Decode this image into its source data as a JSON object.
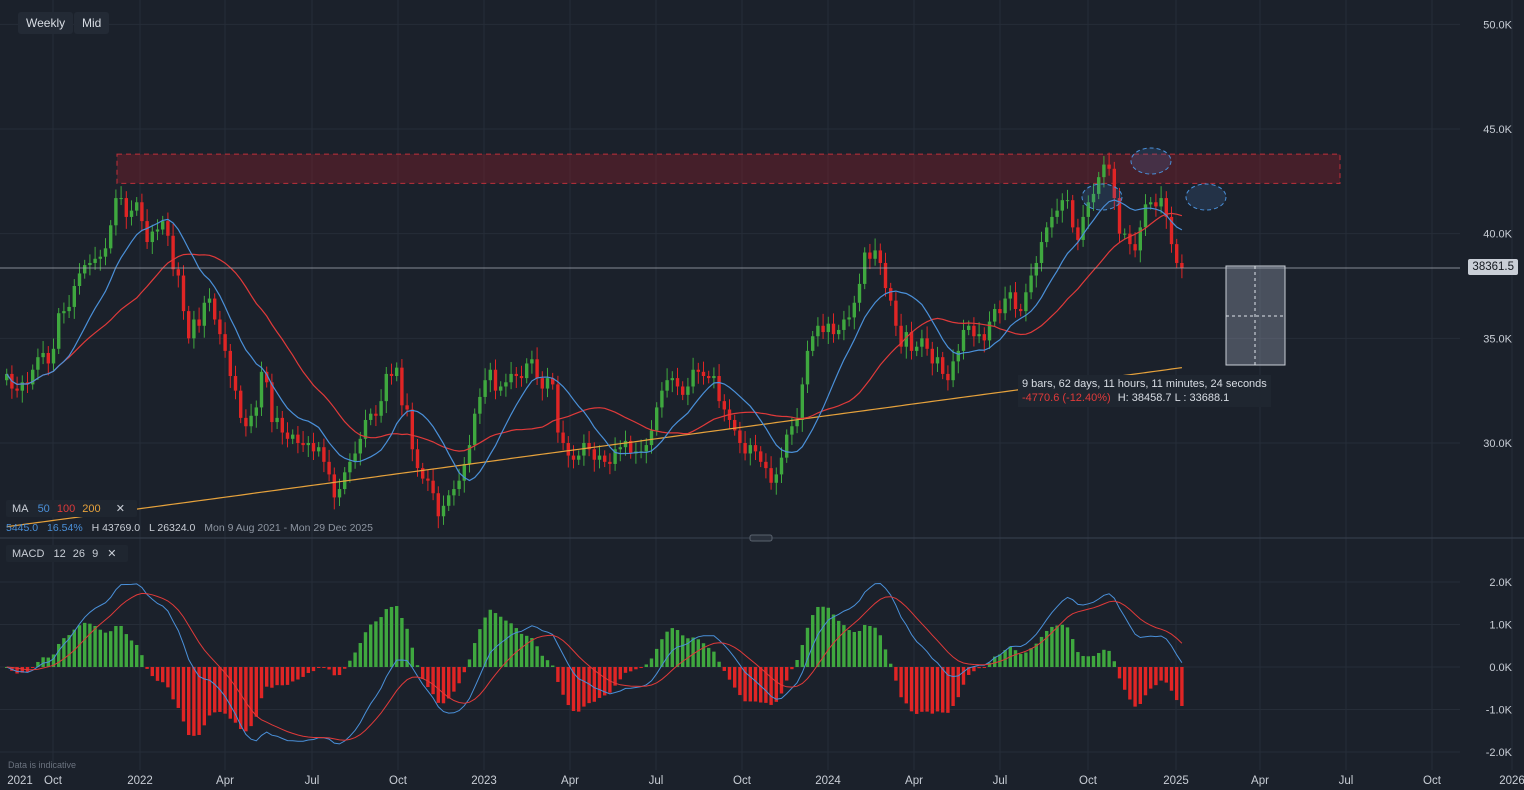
{
  "toolbar": {
    "interval": "Weekly",
    "price_type": "Mid"
  },
  "indicators": {
    "ma": {
      "label": "MA",
      "p1": "50",
      "p2": "100",
      "p3": "200",
      "colors": {
        "ma50": "#4a90d9",
        "ma100": "#e03a3a",
        "ma200": "#e6a23c"
      }
    },
    "stats": {
      "change": "5445.0",
      "pct": "16.54%",
      "high": "H 43769.0",
      "low": "L 26324.0",
      "range": "Mon 9 Aug 2021 - Mon 29 Dec 2025"
    },
    "macd": {
      "label": "MACD",
      "fast": "12",
      "slow": "26",
      "signal": "9"
    }
  },
  "last_price": "38361.5",
  "measurement": {
    "line1": "9 bars, 62 days, 11 hours, 11 minutes, 24 seconds",
    "change": "-4770.6 (-12.40%)",
    "hl": "H: 38458.7 L : 33688.1"
  },
  "disclaimer": "Data is indicative",
  "chart_data": {
    "type": "candlestick",
    "y_axis": {
      "ticks": [
        "50.0K",
        "45.0K",
        "40.0K",
        "35.0K",
        "30.0K"
      ],
      "range": [
        24000,
        51000
      ]
    },
    "x_axis": {
      "ticks": [
        "2021",
        "Oct",
        "2022",
        "Apr",
        "Jul",
        "Oct",
        "2023",
        "Apr",
        "Jul",
        "Oct",
        "2024",
        "Apr",
        "Jul",
        "Oct",
        "2025",
        "Apr",
        "Jul",
        "Oct",
        "2026"
      ]
    },
    "resistance_zone": [
      42400,
      43800
    ],
    "colors": {
      "up": "#3fa83f",
      "down": "#e02525"
    },
    "close": [
      33300,
      32600,
      32500,
      32900,
      32800,
      33500,
      34100,
      34300,
      33800,
      34500,
      36200,
      36300,
      36500,
      37500,
      38100,
      38500,
      38600,
      38800,
      38900,
      39300,
      40400,
      41700,
      41700,
      40800,
      41100,
      41500,
      40600,
      39600,
      40100,
      40200,
      40600,
      39900,
      38300,
      38000,
      36300,
      35000,
      35900,
      35600,
      36700,
      36900,
      35900,
      35200,
      34400,
      33200,
      32500,
      31200,
      30800,
      31300,
      31700,
      33400,
      32900,
      31000,
      31200,
      30500,
      30200,
      30400,
      30000,
      29900,
      30000,
      29600,
      29800,
      29100,
      28500,
      27400,
      27800,
      28600,
      29100,
      29500,
      30200,
      31100,
      31400,
      31300,
      32000,
      33300,
      33200,
      33600,
      31800,
      31600,
      29700,
      28800,
      28300,
      28200,
      27600,
      26500,
      27000,
      27500,
      27800,
      28200,
      29000,
      29900,
      31400,
      32200,
      33000,
      33500,
      32500,
      32700,
      32900,
      33300,
      33200,
      33100,
      33800,
      34000,
      33100,
      32600,
      33100,
      32800,
      30500,
      30000,
      29400,
      29200,
      29400,
      30000,
      29700,
      29200,
      29400,
      29100,
      29000,
      29700,
      29800,
      30100,
      29500,
      29600,
      29600,
      29900,
      30600,
      31700,
      32500,
      33000,
      33100,
      32700,
      32300,
      32700,
      33500,
      33400,
      33200,
      33100,
      33200,
      32000,
      31600,
      31100,
      30600,
      30000,
      29500,
      29900,
      29600,
      29100,
      28800,
      28100,
      28500,
      29300,
      30400,
      30800,
      31100,
      32800,
      34400,
      35100,
      35600,
      35300,
      35700,
      35200,
      35400,
      35900,
      36000,
      36700,
      37600,
      39100,
      38800,
      39200,
      38600,
      37400,
      36800,
      35600,
      34600,
      35300,
      34400,
      34600,
      35000,
      34500,
      33800,
      34100,
      33300,
      33000,
      33900,
      34400,
      35400,
      35600,
      35100,
      35200,
      34900,
      35800,
      36400,
      36200,
      36900,
      37200,
      36400,
      36300,
      37200,
      38000,
      38600,
      39600,
      40300,
      40800,
      41100,
      41600,
      41600,
      40300,
      39700,
      40800,
      41500,
      41900,
      42700,
      43300,
      43100,
      41700,
      40000,
      40000,
      39500,
      39200,
      40300,
      41400,
      41500,
      41300,
      41700,
      40800,
      39500,
      38600,
      38361
    ]
  }
}
